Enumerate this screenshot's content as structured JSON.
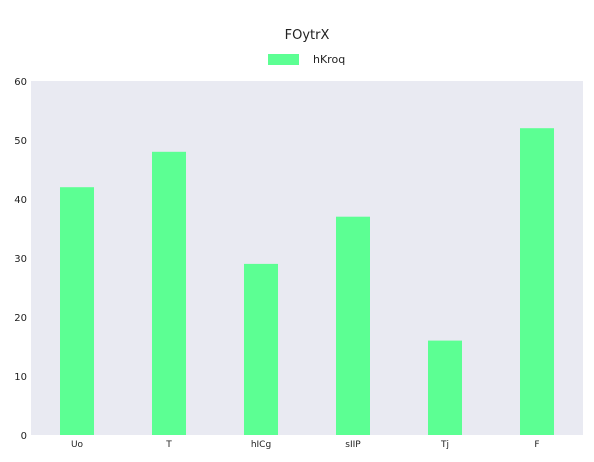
{
  "chart_data": {
    "type": "bar",
    "title": "FOytrX",
    "categories": [
      "Uo",
      "T",
      "hICg",
      "sIIP",
      "Tj",
      "F"
    ],
    "series": [
      {
        "name": "hKroq",
        "values": [
          42,
          48,
          29,
          37,
          16,
          52
        ],
        "color": "#5cff93"
      }
    ],
    "ylim": [
      0,
      60
    ],
    "yticks": [
      0,
      10,
      20,
      30,
      40,
      50,
      60
    ],
    "xlabel": "",
    "ylabel": "",
    "grid": false,
    "legend_position": "top-center",
    "plot_background": "#e9eaf2"
  }
}
